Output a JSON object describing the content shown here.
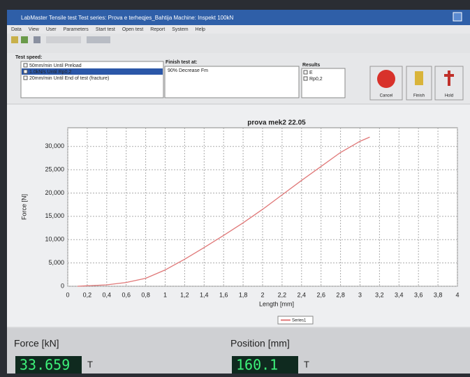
{
  "window": {
    "title": "LabMaster  Tensile test  Test series: Prova e terheqjes_Bahtija  Machine: Inspekt 100kN"
  },
  "menu": [
    "Data",
    "View",
    "User",
    "Parameters",
    "Start test",
    "Open test",
    "Report",
    "System",
    "Help"
  ],
  "test_speed": {
    "label": "Test speed:",
    "items": [
      "50mm/min Until Preload",
      "1.0kN/s Until Rp0,2",
      "20mm/min Until End of test (fracture)"
    ]
  },
  "finish": {
    "label": "Finish test at:",
    "value": "90% Decrease Fm"
  },
  "results": {
    "label": "Results",
    "items": [
      "E",
      "Rp0,2"
    ]
  },
  "buttons": [
    "Cancel",
    "Finish",
    "Hold"
  ],
  "chart_data": {
    "type": "line",
    "title": "prova mek2 22.05",
    "x_label": "Length [mm]",
    "y_label": "Force [N]",
    "x": [
      0.1,
      0.2,
      0.4,
      0.6,
      0.8,
      1.0,
      1.2,
      1.4,
      1.6,
      1.8,
      2.0,
      2.2,
      2.4,
      2.6,
      2.8,
      3.0,
      3.1
    ],
    "series": [
      {
        "name": "Series1",
        "color": "#e07878",
        "values": [
          0,
          100,
          300,
          800,
          1700,
          3500,
          5800,
          8300,
          10900,
          13600,
          16500,
          19600,
          22700,
          25700,
          28700,
          31100,
          32000
        ]
      }
    ],
    "xlim": [
      0,
      4
    ],
    "ylim": [
      0,
      34000
    ],
    "xticks": [
      0,
      {
        "value": 0.2,
        "label": "0,2"
      },
      {
        "value": 0.4,
        "label": "0,4"
      },
      {
        "value": 0.6,
        "label": "0,6"
      },
      {
        "value": 0.8,
        "label": "0,8"
      },
      1,
      {
        "value": 1.2,
        "label": "1,2"
      },
      {
        "value": 1.4,
        "label": "1,4"
      },
      {
        "value": 1.6,
        "label": "1,6"
      },
      {
        "value": 1.8,
        "label": "1,8"
      },
      2,
      {
        "value": 2.2,
        "label": "2,2"
      },
      {
        "value": 2.4,
        "label": "2,4"
      },
      {
        "value": 2.6,
        "label": "2,6"
      },
      {
        "value": 2.8,
        "label": "2,8"
      },
      3,
      {
        "value": 3.2,
        "label": "3,2"
      },
      {
        "value": 3.4,
        "label": "3,4"
      },
      {
        "value": 3.6,
        "label": "3,6"
      },
      {
        "value": 3.8,
        "label": "3,8"
      },
      4
    ],
    "yticks": [
      0,
      {
        "value": 5000,
        "label": "5,000"
      },
      {
        "value": 10000,
        "label": "10,000"
      },
      {
        "value": 15000,
        "label": "15,000"
      },
      {
        "value": 20000,
        "label": "20,000"
      },
      {
        "value": 25000,
        "label": "25,000"
      },
      {
        "value": 30000,
        "label": "30,000"
      }
    ],
    "grid": true
  },
  "readouts": [
    {
      "label": "Force [kN]",
      "value": "33.659",
      "unit": "T"
    },
    {
      "label": "Position [mm]",
      "value": "160.1",
      "unit": "T"
    }
  ]
}
